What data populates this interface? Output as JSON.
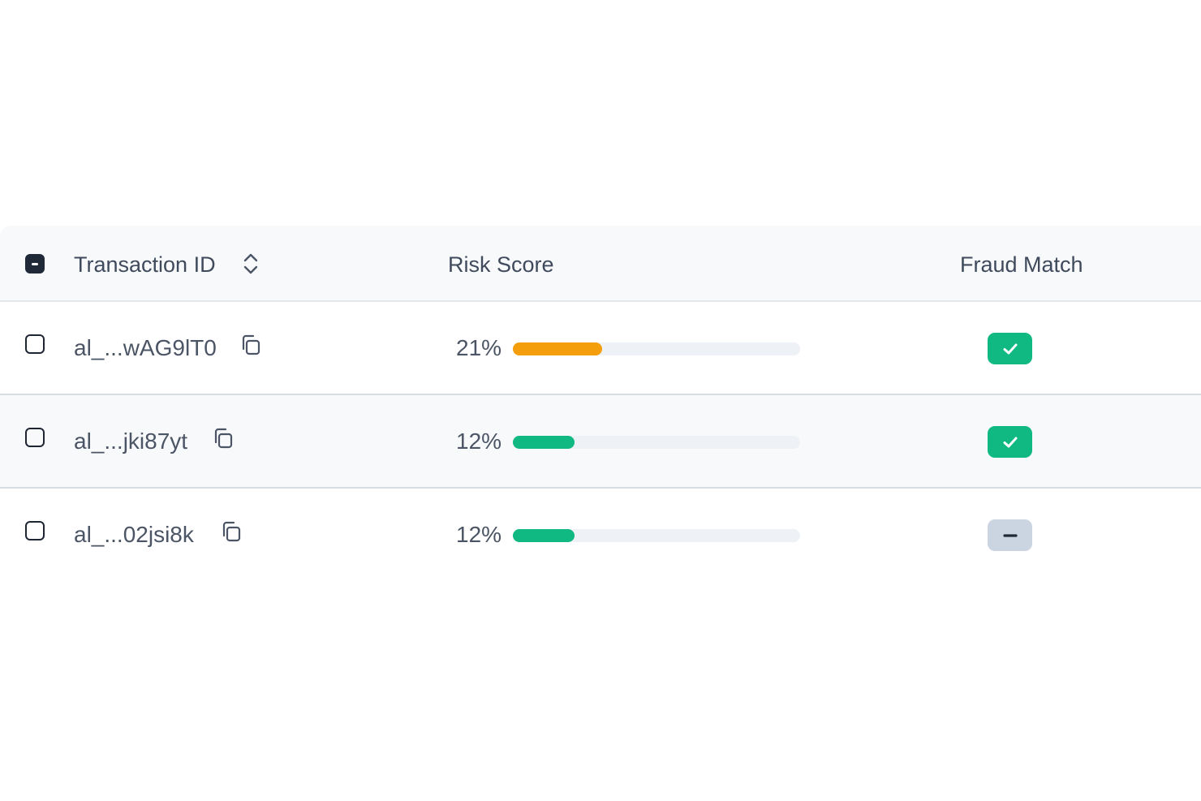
{
  "table": {
    "columns": {
      "transaction_id": "Transaction ID",
      "risk_score": "Risk Score",
      "fraud_match": "Fraud Match"
    },
    "select_all_state": "indeterminate",
    "rows": [
      {
        "transaction_id": "al_...wAG9lT0",
        "risk_percent_label": "21%",
        "risk_fraction": 0.21,
        "risk_color": "#f59e0b",
        "fraud_match": "match",
        "selected": false
      },
      {
        "transaction_id": "al_...jki87yt",
        "risk_percent_label": "12%",
        "risk_fraction": 0.12,
        "risk_color": "#10b981",
        "fraud_match": "match",
        "selected": false
      },
      {
        "transaction_id": "al_...02jsi8k",
        "risk_percent_label": "12%",
        "risk_fraction": 0.12,
        "risk_color": "#10b981",
        "fraud_match": "none",
        "selected": false
      }
    ]
  },
  "icons": {
    "sort": "chevron-up-down-icon",
    "copy": "copy-icon",
    "match": "check-icon",
    "none": "minus-icon"
  },
  "colors": {
    "match_badge": "#10b981",
    "none_badge": "#cbd5e1",
    "track": "#eef1f5",
    "header_bg": "#f8f9fb"
  }
}
